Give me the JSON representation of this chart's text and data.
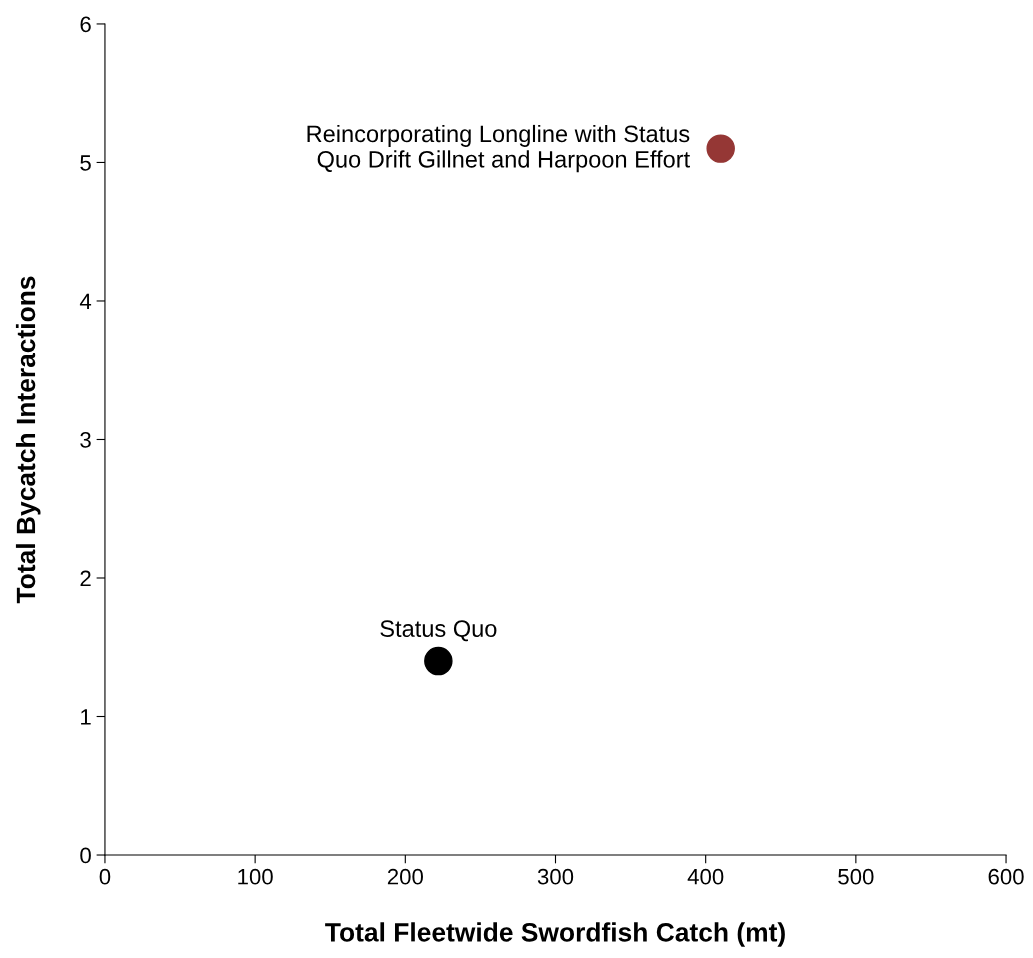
{
  "chart_data": {
    "type": "scatter",
    "xlabel": "Total Fleetwide Swordfish Catch (mt)",
    "ylabel": "Total Bycatch Interactions",
    "series": [
      {
        "name": "Status Quo",
        "color": "#000000",
        "x": [
          222
        ],
        "values": [
          1.4
        ]
      },
      {
        "name": "Reincorporating Longline with Status\nQuo Drift Gillnet and Harpoon Effort",
        "color": "#953735",
        "x": [
          410
        ],
        "values": [
          5.1
        ]
      }
    ],
    "xlim": [
      0,
      600
    ],
    "xticks": [
      0,
      100,
      200,
      300,
      400,
      500,
      600
    ],
    "ylim": [
      0,
      6
    ],
    "yticks": [
      0,
      1,
      2,
      3,
      4,
      5,
      6
    ],
    "grid": false,
    "legend": false,
    "marker": "circle"
  }
}
